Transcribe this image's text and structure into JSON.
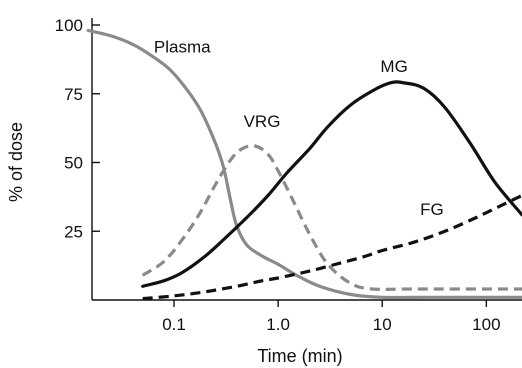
{
  "chart_data": {
    "type": "line",
    "title": "",
    "xlabel": "Time (min)",
    "ylabel": "% of dose",
    "x_scale": "log",
    "xlim": [
      0.0125,
      220
    ],
    "ylim": [
      0,
      100
    ],
    "x_ticks": [
      {
        "value": 0.1,
        "label": "0.1"
      },
      {
        "value": 1,
        "label": "1.0"
      },
      {
        "value": 10,
        "label": "10"
      },
      {
        "value": 100,
        "label": "100"
      }
    ],
    "y_ticks": [
      {
        "value": 25,
        "label": "25"
      },
      {
        "value": 50,
        "label": "50"
      },
      {
        "value": 75,
        "label": "75"
      },
      {
        "value": 100,
        "label": "100"
      }
    ],
    "grid": false,
    "legend": "none (series labeled directly on plot)",
    "series": [
      {
        "name": "Plasma",
        "color": "#8a8a8a",
        "dash": "solid",
        "label_at": [
          0.12,
          90
        ],
        "x": [
          0.015,
          0.025,
          0.04,
          0.06,
          0.09,
          0.13,
          0.18,
          0.25,
          0.3,
          0.35,
          0.4,
          0.5,
          0.7,
          1.0,
          1.5,
          2.5,
          5,
          10,
          30,
          100,
          220
        ],
        "y": [
          98,
          96,
          93,
          89,
          84,
          77,
          69,
          57,
          48,
          36,
          27,
          20,
          16,
          13,
          9,
          5,
          2,
          1,
          1,
          1,
          1
        ]
      },
      {
        "name": "VRG",
        "color": "#8a8a8a",
        "dash": "dashed",
        "label_at": [
          0.7,
          63
        ],
        "x": [
          0.05,
          0.08,
          0.12,
          0.18,
          0.25,
          0.35,
          0.45,
          0.6,
          0.8,
          1.0,
          1.4,
          2.0,
          3.0,
          5.0,
          8.0,
          20,
          220
        ],
        "y": [
          9,
          14,
          22,
          32,
          42,
          51,
          55,
          56,
          53,
          47,
          36,
          24,
          13,
          6,
          4,
          4,
          4
        ]
      },
      {
        "name": "MG",
        "color": "#111111",
        "dash": "solid",
        "label_at": [
          13,
          83
        ],
        "x": [
          0.05,
          0.08,
          0.12,
          0.2,
          0.3,
          0.5,
          0.8,
          1.2,
          2.0,
          3.0,
          5.0,
          8.0,
          12,
          16,
          25,
          40,
          70,
          120,
          220
        ],
        "y": [
          5,
          7,
          10,
          16,
          22,
          30,
          38,
          46,
          55,
          63,
          71,
          76,
          79,
          79,
          77,
          70,
          57,
          43,
          31
        ]
      },
      {
        "name": "FG",
        "color": "#111111",
        "dash": "dashed",
        "label_at": [
          30,
          31
        ],
        "x": [
          0.05,
          0.1,
          0.2,
          0.4,
          0.7,
          1.0,
          2.0,
          4.0,
          7.0,
          10,
          20,
          40,
          80,
          150,
          220
        ],
        "y": [
          0.5,
          1.5,
          3,
          5,
          7,
          8,
          10.5,
          13.5,
          16,
          18,
          21,
          25,
          30,
          35,
          38
        ]
      }
    ]
  }
}
